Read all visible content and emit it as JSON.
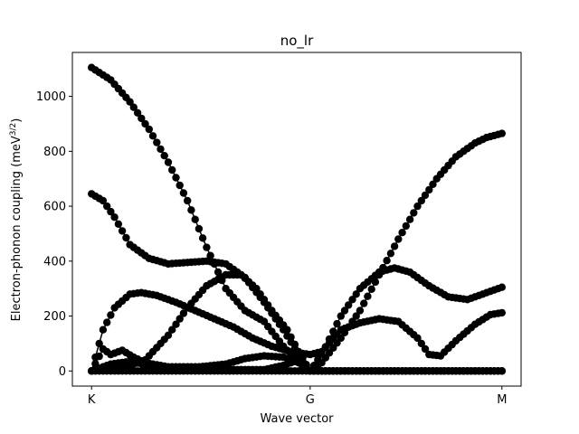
{
  "chart_data": {
    "type": "line",
    "title": "no_lr",
    "xlabel": "Wave vector",
    "ylabel_main": "Electron-phonon coupling (meV",
    "ylabel_sup": "3/2",
    "ylabel_close": ")",
    "x_ticks": [
      {
        "label": "K",
        "pos": 0
      },
      {
        "label": "G",
        "pos": 57
      },
      {
        "label": "M",
        "pos": 107
      }
    ],
    "xlim": [
      -5,
      112
    ],
    "y_ticks": [
      0,
      200,
      400,
      600,
      800,
      1000
    ],
    "ylim": [
      -55,
      1160
    ],
    "grid": false,
    "marker": "circle",
    "line_color": "#000000",
    "series": [
      {
        "keys": [
          [
            0,
            1105
          ],
          [
            5,
            1060
          ],
          [
            10,
            980
          ],
          [
            15,
            880
          ],
          [
            20,
            760
          ],
          [
            25,
            620
          ],
          [
            30,
            450
          ],
          [
            35,
            300
          ],
          [
            40,
            220
          ],
          [
            45,
            180
          ],
          [
            50,
            90
          ],
          [
            54,
            30
          ],
          [
            57,
            0
          ],
          [
            60,
            30
          ],
          [
            65,
            120
          ],
          [
            70,
            220
          ],
          [
            75,
            350
          ],
          [
            80,
            480
          ],
          [
            85,
            600
          ],
          [
            90,
            700
          ],
          [
            95,
            780
          ],
          [
            100,
            830
          ],
          [
            103,
            850
          ],
          [
            107,
            865
          ]
        ]
      },
      {
        "keys": [
          [
            0,
            645
          ],
          [
            3,
            620
          ],
          [
            6,
            560
          ],
          [
            10,
            460
          ],
          [
            15,
            410
          ],
          [
            20,
            390
          ],
          [
            25,
            395
          ],
          [
            30,
            400
          ],
          [
            35,
            390
          ],
          [
            40,
            340
          ],
          [
            45,
            250
          ],
          [
            50,
            150
          ],
          [
            54,
            60
          ],
          [
            57,
            0
          ],
          [
            60,
            60
          ],
          [
            65,
            200
          ],
          [
            70,
            300
          ],
          [
            75,
            360
          ],
          [
            79,
            375
          ],
          [
            83,
            360
          ],
          [
            88,
            310
          ],
          [
            93,
            270
          ],
          [
            98,
            260
          ],
          [
            103,
            285
          ],
          [
            107,
            305
          ]
        ]
      },
      {
        "keys": [
          [
            0,
            0
          ],
          [
            3,
            150
          ],
          [
            6,
            230
          ],
          [
            10,
            280
          ],
          [
            13,
            285
          ],
          [
            17,
            275
          ],
          [
            22,
            250
          ],
          [
            27,
            220
          ],
          [
            32,
            190
          ],
          [
            37,
            160
          ],
          [
            42,
            120
          ],
          [
            47,
            90
          ],
          [
            52,
            70
          ],
          [
            57,
            60
          ],
          [
            60,
            70
          ],
          [
            65,
            150
          ],
          [
            70,
            175
          ],
          [
            75,
            190
          ],
          [
            80,
            180
          ],
          [
            85,
            120
          ],
          [
            88,
            60
          ],
          [
            91,
            55
          ],
          [
            95,
            110
          ],
          [
            100,
            170
          ],
          [
            104,
            205
          ],
          [
            107,
            212
          ]
        ]
      },
      {
        "keys": [
          [
            0,
            0
          ],
          [
            8,
            10
          ],
          [
            14,
            40
          ],
          [
            20,
            130
          ],
          [
            25,
            230
          ],
          [
            30,
            310
          ],
          [
            35,
            350
          ],
          [
            39,
            350
          ],
          [
            43,
            300
          ],
          [
            47,
            220
          ],
          [
            51,
            150
          ],
          [
            54,
            70
          ],
          [
            57,
            0
          ],
          [
            62,
            0
          ],
          [
            70,
            0
          ],
          [
            80,
            0
          ],
          [
            90,
            0
          ],
          [
            100,
            0
          ],
          [
            107,
            0
          ]
        ]
      },
      {
        "keys": [
          [
            0,
            0
          ],
          [
            3,
            80
          ],
          [
            5,
            60
          ],
          [
            8,
            75
          ],
          [
            11,
            50
          ],
          [
            14,
            30
          ],
          [
            20,
            15
          ],
          [
            28,
            15
          ],
          [
            35,
            25
          ],
          [
            40,
            45
          ],
          [
            45,
            55
          ],
          [
            50,
            50
          ],
          [
            54,
            30
          ],
          [
            57,
            0
          ],
          [
            62,
            0
          ],
          [
            70,
            0
          ],
          [
            80,
            0
          ],
          [
            90,
            0
          ],
          [
            100,
            0
          ],
          [
            107,
            0
          ]
        ]
      },
      {
        "keys": [
          [
            0,
            0
          ],
          [
            5,
            25
          ],
          [
            10,
            35
          ],
          [
            15,
            20
          ],
          [
            22,
            8
          ],
          [
            30,
            5
          ],
          [
            38,
            5
          ],
          [
            45,
            5
          ],
          [
            50,
            20
          ],
          [
            54,
            40
          ],
          [
            57,
            0
          ],
          [
            70,
            0
          ],
          [
            107,
            0
          ]
        ]
      },
      {
        "keys": [
          [
            0,
            0
          ],
          [
            20,
            0
          ],
          [
            40,
            0
          ],
          [
            57,
            0
          ],
          [
            80,
            0
          ],
          [
            107,
            0
          ]
        ]
      }
    ]
  }
}
